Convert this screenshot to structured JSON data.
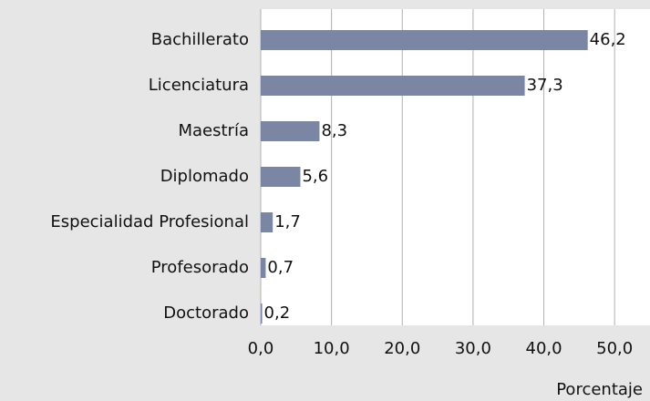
{
  "chart_data": {
    "type": "bar",
    "orientation": "horizontal",
    "categories": [
      "Bachillerato",
      "Licenciatura",
      "Maestría",
      "Diplomado",
      "Especialidad Profesional",
      "Profesorado",
      "Doctorado"
    ],
    "values": [
      46.2,
      37.3,
      8.3,
      5.6,
      1.7,
      0.7,
      0.2
    ],
    "value_labels": [
      "46,2",
      "37,3",
      "8,3",
      "5,6",
      "1,7",
      "0,7",
      "0,2"
    ],
    "color": "#7a86a3",
    "xlim": [
      0,
      55
    ],
    "xticks": [
      {
        "value": 0,
        "label": "0,0"
      },
      {
        "value": 10,
        "label": "10,0"
      },
      {
        "value": 20,
        "label": "20,0"
      },
      {
        "value": 30,
        "label": "30,0"
      },
      {
        "value": 40,
        "label": "40,0"
      },
      {
        "value": 50,
        "label": "50,0"
      }
    ],
    "x_label": "Porcentaje",
    "grid": true
  }
}
